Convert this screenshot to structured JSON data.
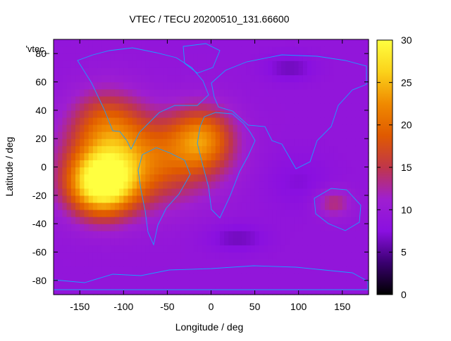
{
  "chart_data": {
    "type": "heatmap",
    "title": "VTEC / TECU 20200510_131.66600",
    "xlabel": "Longitude / deg",
    "ylabel": "Latitude / deg",
    "series_key_label": "'vtec_",
    "xlim": [
      -180,
      180
    ],
    "ylim": [
      -90,
      90
    ],
    "x_ticks": [
      -150,
      -100,
      -50,
      0,
      50,
      100,
      150
    ],
    "y_ticks": [
      -80,
      -60,
      -40,
      -20,
      0,
      20,
      40,
      60,
      80
    ],
    "colorbar": {
      "range": [
        0,
        30
      ],
      "ticks": [
        0,
        5,
        10,
        15,
        20,
        25,
        30
      ],
      "palette": [
        "#000000",
        "#3a0070",
        "#8a10e0",
        "#9f1fd0",
        "#c0364a",
        "#e05a00",
        "#f08a00",
        "#fbd21a",
        "#ffff40"
      ]
    },
    "background_level": 9,
    "regions": [
      {
        "center_lon": -125,
        "center_lat": -12,
        "radius_lon": 38,
        "radius_lat": 22,
        "peak": 29
      },
      {
        "center_lon": -80,
        "center_lat": 5,
        "radius_lon": 75,
        "radius_lat": 30,
        "peak": 20
      },
      {
        "center_lon": -10,
        "center_lat": 20,
        "radius_lon": 35,
        "radius_lat": 22,
        "peak": 20
      },
      {
        "center_lon": -120,
        "center_lat": 30,
        "radius_lon": 40,
        "radius_lat": 25,
        "peak": 17
      },
      {
        "center_lon": 140,
        "center_lat": -25,
        "radius_lon": 20,
        "radius_lat": 10,
        "peak": 14
      },
      {
        "center_lon": 90,
        "center_lat": 70,
        "radius_lon": 30,
        "radius_lat": 10,
        "peak": 6
      },
      {
        "center_lon": 100,
        "center_lat": -10,
        "radius_lon": 40,
        "radius_lat": 20,
        "peak": 7
      },
      {
        "center_lon": 30,
        "center_lat": -50,
        "radius_lon": 35,
        "radius_lat": 10,
        "peak": 6
      }
    ]
  }
}
